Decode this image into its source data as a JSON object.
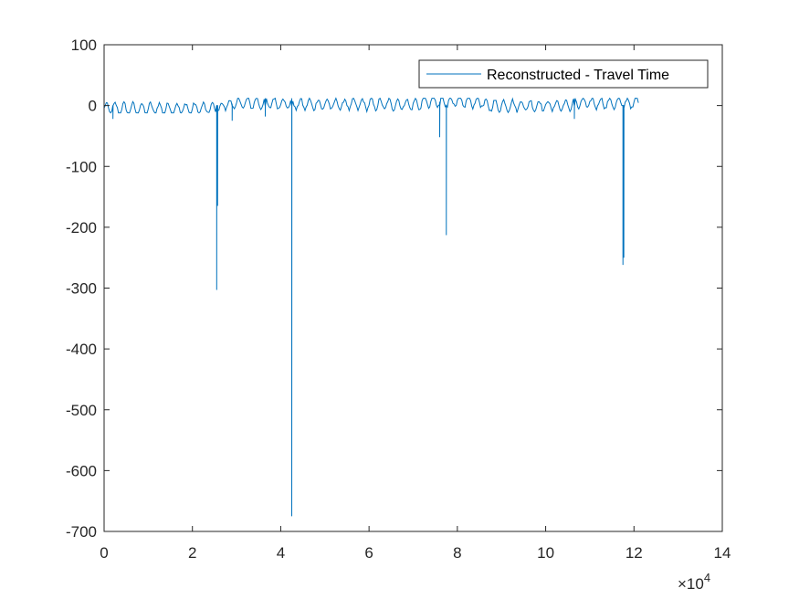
{
  "chart_data": {
    "type": "line",
    "title": "",
    "xlabel": "",
    "ylabel": "",
    "xlim": [
      0,
      140000
    ],
    "ylim": [
      -700,
      100
    ],
    "x_exponent_label": "×10",
    "x_exponent_power": "4",
    "x_ticks": [
      0,
      20000,
      40000,
      60000,
      80000,
      100000,
      120000,
      140000
    ],
    "x_tick_labels": [
      "0",
      "2",
      "4",
      "6",
      "8",
      "10",
      "12",
      "14"
    ],
    "y_ticks": [
      100,
      0,
      -100,
      -200,
      -300,
      -400,
      -500,
      -600,
      -700
    ],
    "y_tick_labels": [
      "100",
      "0",
      "-100",
      "-200",
      "-300",
      "-400",
      "-500",
      "-600",
      "-700"
    ],
    "grid": false,
    "legend_position": "top-right",
    "series": [
      {
        "name": "Reconstructed - Travel Time",
        "color": "#0072BD",
        "x_range": [
          0,
          121000
        ],
        "oscillation": {
          "period": 2000,
          "min": -12,
          "max": 12
        },
        "spikes": [
          {
            "x": 25500,
            "y": -303
          },
          {
            "x": 25700,
            "y": -165
          },
          {
            "x": 42500,
            "y": -675
          },
          {
            "x": 76000,
            "y": -52
          },
          {
            "x": 77500,
            "y": -213
          },
          {
            "x": 117500,
            "y": -262
          },
          {
            "x": 117700,
            "y": -250
          },
          {
            "x": 2000,
            "y": -22
          },
          {
            "x": 29000,
            "y": -25
          },
          {
            "x": 36500,
            "y": -18
          },
          {
            "x": 106500,
            "y": -22
          }
        ]
      }
    ]
  }
}
